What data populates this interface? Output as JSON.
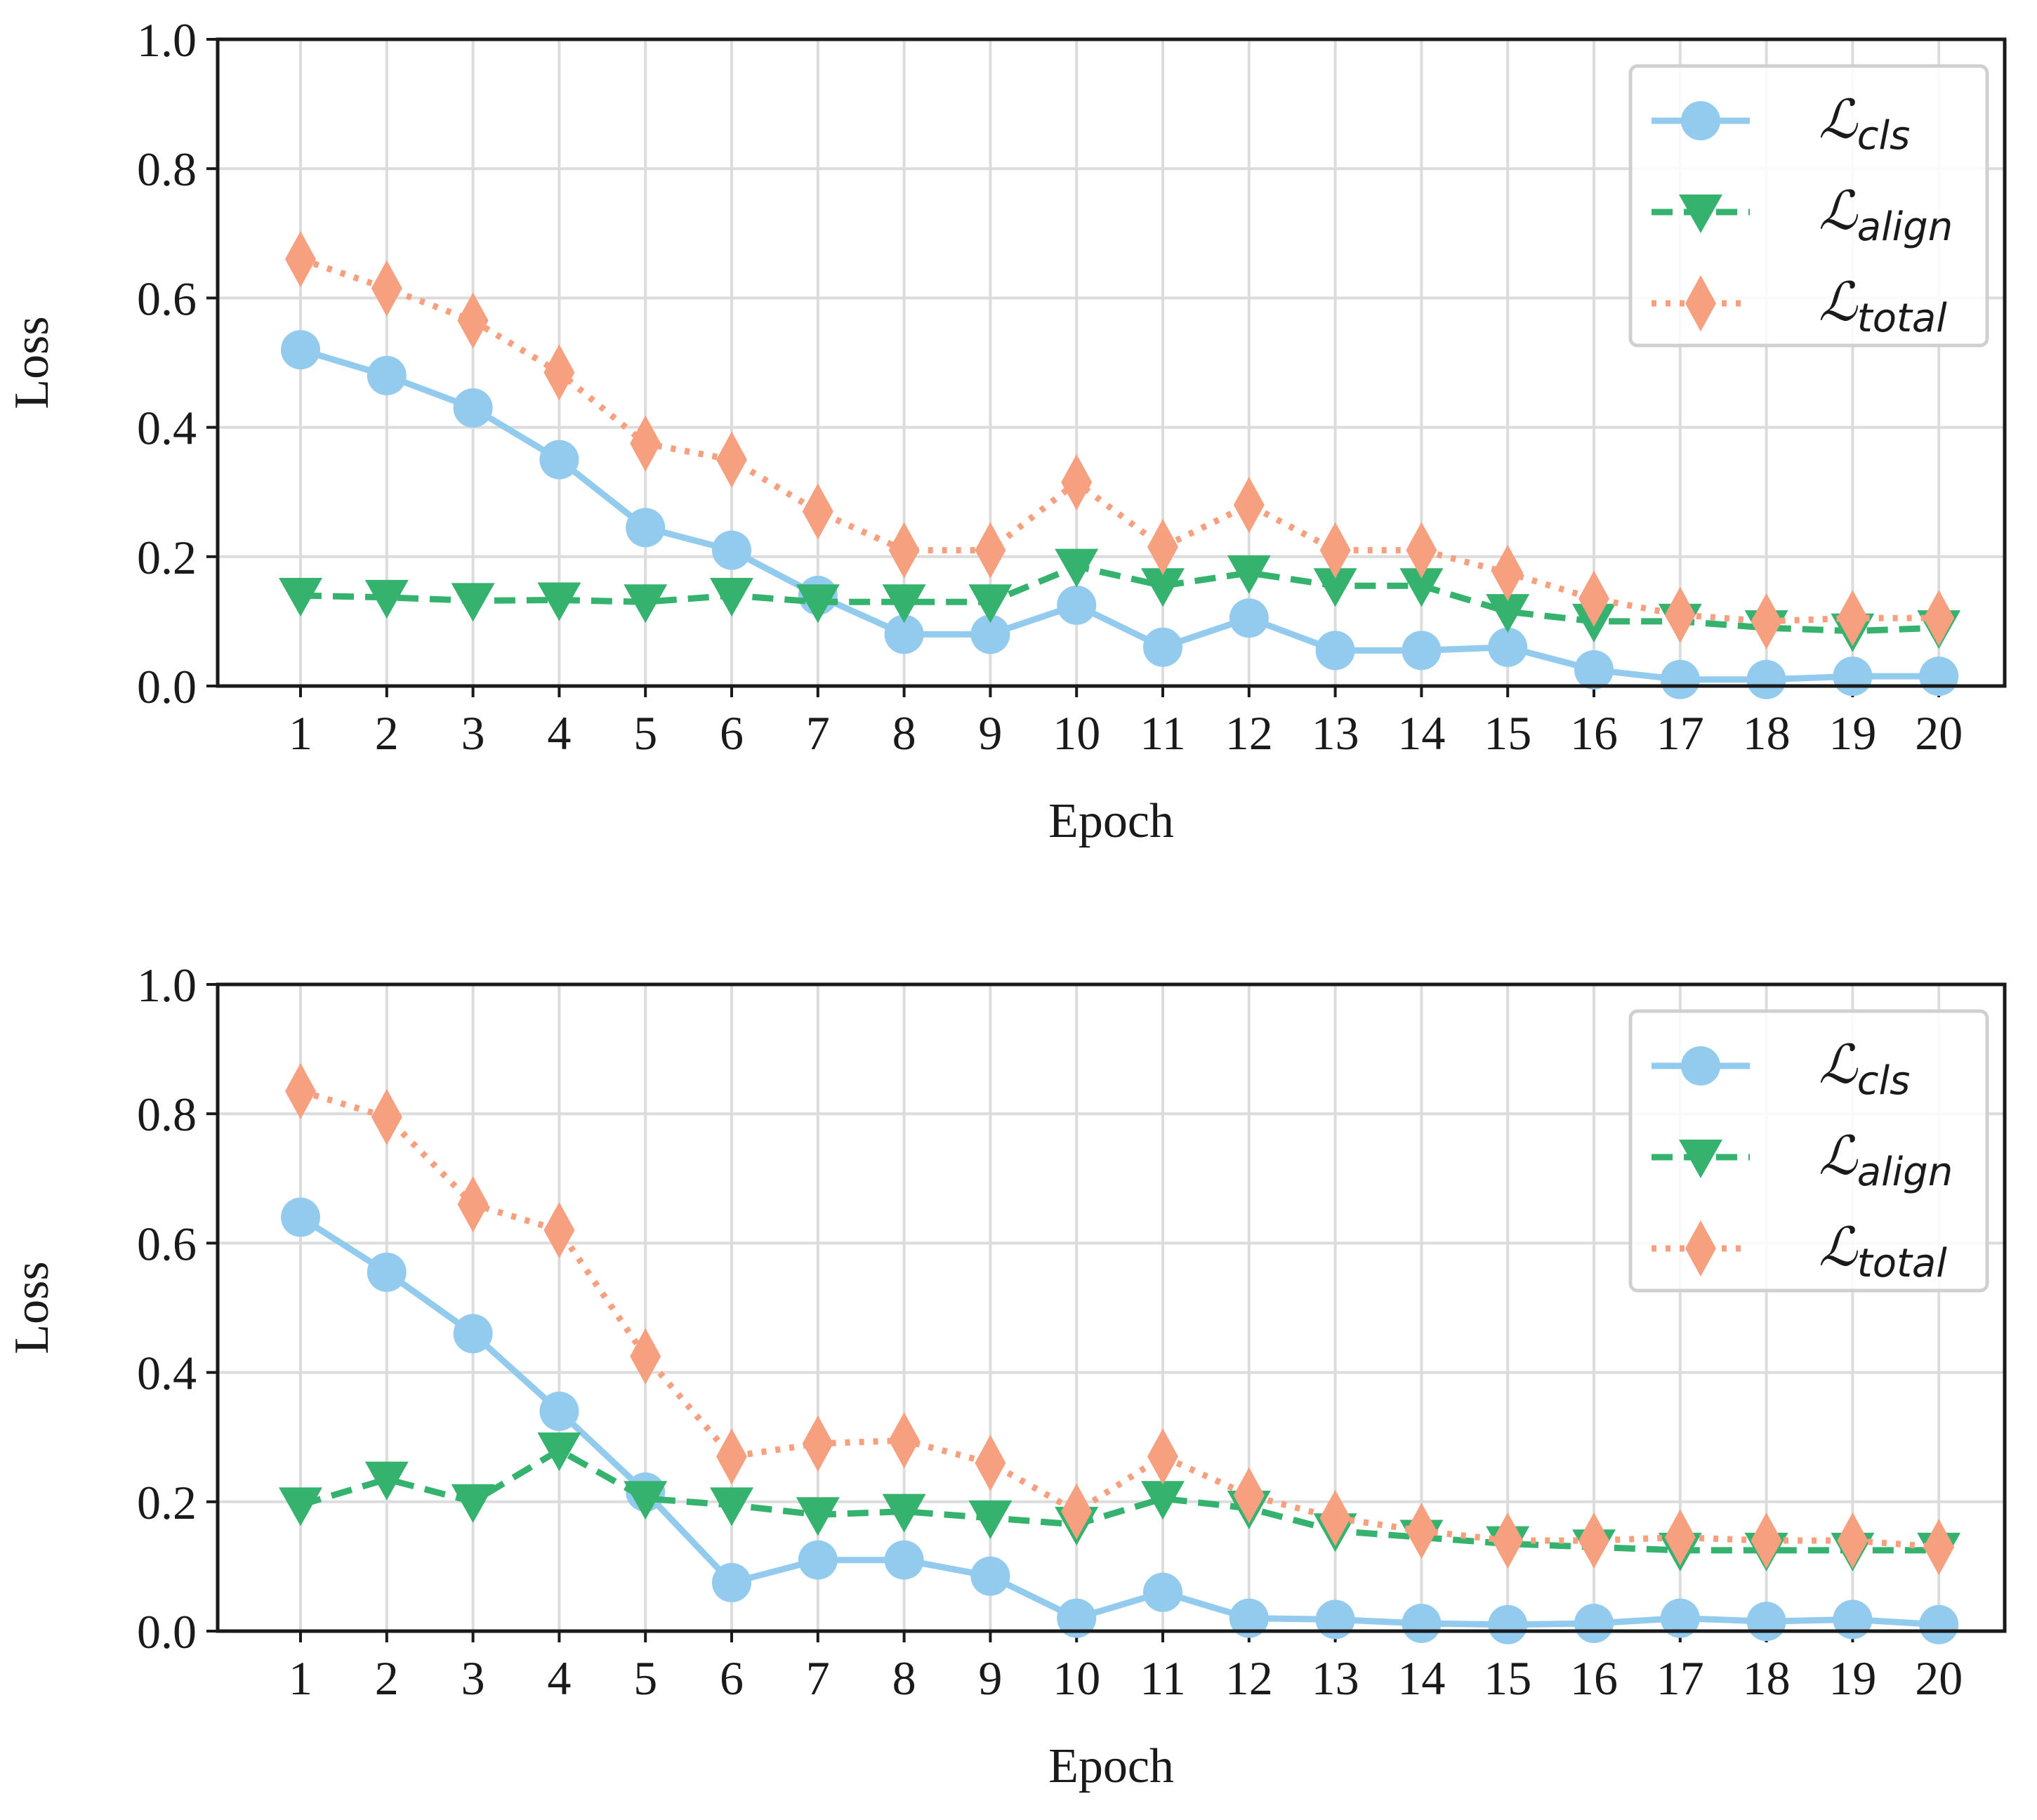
{
  "chart_data": [
    {
      "type": "line",
      "xlabel": "Epoch",
      "ylabel": "Loss",
      "ylim": [
        0.0,
        1.0
      ],
      "yticks": [
        "0.0",
        "0.2",
        "0.4",
        "0.6",
        "0.8",
        "1.0"
      ],
      "grid": true,
      "legend_position": "top-right",
      "x": [
        1,
        2,
        3,
        4,
        5,
        6,
        7,
        8,
        9,
        10,
        11,
        12,
        13,
        14,
        15,
        16,
        17,
        18,
        19,
        20
      ],
      "xtick_labels": [
        "1",
        "2",
        "3",
        "4",
        "5",
        "6",
        "7",
        "8",
        "9",
        "10",
        "11",
        "12",
        "13",
        "14",
        "15",
        "16",
        "17",
        "18",
        "19",
        "20"
      ],
      "series": [
        {
          "name": "ℒcls",
          "symbol": "ℒ",
          "subscript": "cls",
          "color": "#93CBEE",
          "marker": "circle",
          "linestyle": "solid",
          "values": [
            0.52,
            0.48,
            0.43,
            0.35,
            0.245,
            0.21,
            0.14,
            0.08,
            0.08,
            0.125,
            0.06,
            0.105,
            0.055,
            0.055,
            0.06,
            0.025,
            0.01,
            0.01,
            0.015,
            0.015
          ]
        },
        {
          "name": "ℒalign",
          "symbol": "ℒ",
          "subscript": "align",
          "color": "#34B26E",
          "marker": "triangle-down",
          "linestyle": "dashed",
          "values": [
            0.14,
            0.137,
            0.132,
            0.133,
            0.13,
            0.14,
            0.13,
            0.13,
            0.13,
            0.185,
            0.155,
            0.175,
            0.155,
            0.155,
            0.115,
            0.1,
            0.1,
            0.09,
            0.085,
            0.09
          ]
        },
        {
          "name": "ℒtotal",
          "symbol": "ℒ",
          "subscript": "total",
          "color": "#F6A07F",
          "marker": "diamond",
          "linestyle": "dotted",
          "values": [
            0.66,
            0.615,
            0.565,
            0.485,
            0.375,
            0.35,
            0.27,
            0.21,
            0.21,
            0.315,
            0.215,
            0.28,
            0.21,
            0.21,
            0.175,
            0.135,
            0.11,
            0.1,
            0.105,
            0.105
          ]
        }
      ]
    },
    {
      "type": "line",
      "xlabel": "Epoch",
      "ylabel": "Loss",
      "ylim": [
        0.0,
        1.0
      ],
      "yticks": [
        "0.0",
        "0.2",
        "0.4",
        "0.6",
        "0.8",
        "1.0"
      ],
      "grid": true,
      "legend_position": "top-right",
      "x": [
        1,
        2,
        3,
        4,
        5,
        6,
        7,
        8,
        9,
        10,
        11,
        12,
        13,
        14,
        15,
        16,
        17,
        18,
        19,
        20
      ],
      "xtick_labels": [
        "1",
        "2",
        "3",
        "4",
        "5",
        "6",
        "7",
        "8",
        "9",
        "10",
        "11",
        "12",
        "13",
        "14",
        "15",
        "16",
        "17",
        "18",
        "19",
        "20"
      ],
      "series": [
        {
          "name": "ℒcls",
          "symbol": "ℒ",
          "subscript": "cls",
          "color": "#93CBEE",
          "marker": "circle",
          "linestyle": "solid",
          "values": [
            0.64,
            0.555,
            0.46,
            0.34,
            0.215,
            0.075,
            0.11,
            0.11,
            0.085,
            0.02,
            0.06,
            0.02,
            0.018,
            0.012,
            0.01,
            0.012,
            0.02,
            0.015,
            0.018,
            0.01
          ]
        },
        {
          "name": "ℒalign",
          "symbol": "ℒ",
          "subscript": "align",
          "color": "#34B26E",
          "marker": "triangle-down",
          "linestyle": "dashed",
          "values": [
            0.195,
            0.235,
            0.2,
            0.28,
            0.205,
            0.195,
            0.18,
            0.185,
            0.175,
            0.165,
            0.205,
            0.19,
            0.155,
            0.145,
            0.135,
            0.13,
            0.125,
            0.125,
            0.125,
            0.125
          ]
        },
        {
          "name": "ℒtotal",
          "symbol": "ℒ",
          "subscript": "total",
          "color": "#F6A07F",
          "marker": "diamond",
          "linestyle": "dotted",
          "values": [
            0.835,
            0.795,
            0.66,
            0.62,
            0.425,
            0.27,
            0.29,
            0.295,
            0.26,
            0.185,
            0.27,
            0.21,
            0.175,
            0.155,
            0.14,
            0.14,
            0.145,
            0.14,
            0.14,
            0.13
          ]
        }
      ]
    }
  ]
}
